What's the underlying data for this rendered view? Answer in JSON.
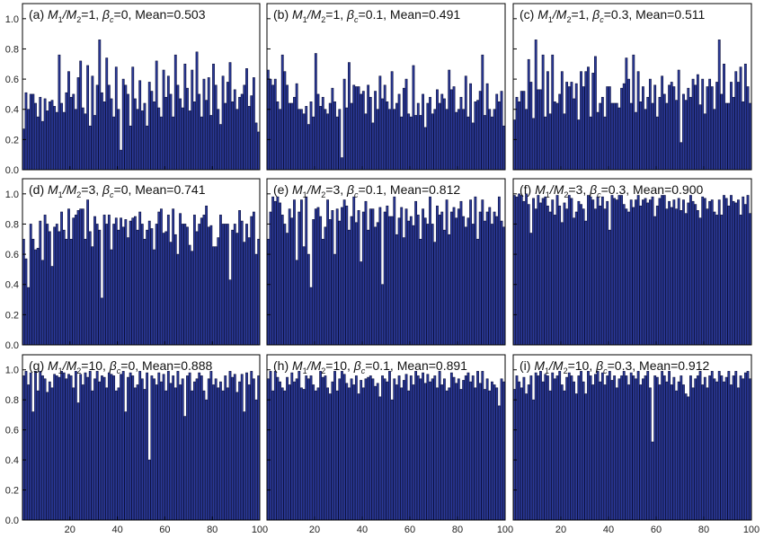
{
  "chart_data": {
    "type": "bar",
    "grid": false,
    "x_ticks": [
      20,
      40,
      60,
      80,
      100
    ],
    "y_ticks": [
      "0.0",
      "0.2",
      "0.4",
      "0.6",
      "0.8",
      "1.0"
    ],
    "ylim": [
      0,
      1.1
    ],
    "xlim": [
      0,
      100
    ],
    "bar_color": "#2b3a9a",
    "panels": [
      {
        "label": "(a)",
        "ratio": "1",
        "beta": "0",
        "mean": "0.503",
        "values": [
          0.27,
          0.51,
          0.4,
          0.5,
          0.5,
          0.44,
          0.35,
          0.48,
          0.32,
          0.47,
          0.39,
          0.45,
          0.46,
          0.42,
          0.38,
          0.76,
          0.44,
          0.38,
          0.51,
          0.65,
          0.48,
          0.5,
          0.4,
          0.61,
          0.72,
          0.41,
          0.37,
          0.69,
          0.29,
          0.62,
          0.36,
          0.56,
          0.86,
          0.51,
          0.45,
          0.74,
          0.56,
          0.47,
          0.35,
          0.68,
          0.4,
          0.13,
          0.6,
          0.56,
          0.5,
          0.29,
          0.68,
          0.47,
          0.4,
          0.59,
          0.39,
          0.44,
          0.29,
          0.58,
          0.52,
          0.45,
          0.72,
          0.41,
          0.35,
          0.66,
          0.48,
          0.62,
          0.5,
          0.35,
          0.76,
          0.56,
          0.47,
          0.41,
          0.7,
          0.54,
          0.39,
          0.66,
          0.45,
          0.78,
          0.5,
          0.35,
          0.6,
          0.46,
          0.61,
          0.36,
          0.7,
          0.56,
          0.4,
          0.3,
          0.62,
          0.44,
          0.58,
          0.71,
          0.45,
          0.53,
          0.4,
          0.48,
          0.5,
          0.56,
          0.67,
          0.42,
          0.49,
          0.61,
          0.31,
          0.25
        ]
      },
      {
        "label": "(b)",
        "ratio": "1",
        "beta": "0.1",
        "mean": "0.491",
        "values": [
          0.66,
          0.6,
          0.56,
          0.6,
          0.45,
          0.4,
          0.76,
          0.65,
          0.56,
          0.44,
          0.44,
          0.48,
          0.57,
          0.4,
          0.4,
          0.37,
          0.42,
          0.3,
          0.45,
          0.35,
          0.77,
          0.5,
          0.42,
          0.48,
          0.4,
          0.37,
          0.44,
          0.54,
          0.45,
          0.35,
          0.4,
          0.08,
          0.6,
          0.41,
          0.71,
          0.44,
          0.56,
          0.55,
          0.55,
          0.5,
          0.52,
          0.37,
          0.56,
          0.48,
          0.31,
          0.52,
          0.4,
          0.62,
          0.47,
          0.56,
          0.45,
          0.4,
          0.65,
          0.4,
          0.44,
          0.5,
          0.35,
          0.54,
          0.6,
          0.37,
          0.35,
          0.69,
          0.36,
          0.44,
          0.36,
          0.5,
          0.28,
          0.44,
          0.48,
          0.37,
          0.4,
          0.53,
          0.44,
          0.5,
          0.47,
          0.4,
          0.66,
          0.53,
          0.55,
          0.38,
          0.4,
          0.48,
          0.4,
          0.62,
          0.35,
          0.57,
          0.31,
          0.45,
          0.46,
          0.52,
          0.76,
          0.36,
          0.57,
          0.4,
          0.35,
          0.4,
          0.5,
          0.45,
          0.52,
          0.29
        ]
      },
      {
        "label": "(c)",
        "ratio": "1",
        "beta": "0.3",
        "mean": "0.511",
        "values": [
          0.33,
          0.48,
          0.45,
          0.52,
          0.52,
          0.4,
          0.73,
          0.58,
          0.34,
          0.86,
          0.53,
          0.53,
          0.76,
          0.35,
          0.65,
          0.37,
          0.76,
          0.45,
          0.44,
          0.5,
          0.65,
          0.37,
          0.58,
          0.55,
          0.58,
          0.47,
          0.57,
          0.33,
          0.65,
          0.55,
          0.65,
          0.68,
          0.35,
          0.64,
          0.75,
          0.38,
          0.44,
          0.48,
          0.35,
          0.55,
          0.55,
          0.44,
          0.44,
          0.44,
          0.41,
          0.54,
          0.57,
          0.74,
          0.6,
          0.44,
          0.76,
          0.38,
          0.65,
          0.45,
          0.55,
          0.4,
          0.48,
          0.6,
          0.44,
          0.56,
          0.35,
          0.48,
          0.62,
          0.5,
          0.44,
          0.56,
          0.58,
          0.55,
          0.46,
          0.66,
          0.18,
          0.5,
          0.46,
          0.54,
          0.48,
          0.6,
          0.56,
          0.63,
          0.43,
          0.6,
          0.37,
          0.55,
          0.6,
          0.55,
          0.4,
          0.58,
          0.86,
          0.5,
          0.7,
          0.44,
          0.44,
          0.58,
          0.48,
          0.65,
          0.58,
          0.68,
          0.45,
          0.7,
          0.55,
          0.44
        ]
      },
      {
        "label": "(d)",
        "ratio": "3",
        "beta": "0",
        "mean": "0.741",
        "values": [
          0.7,
          0.57,
          0.38,
          0.8,
          0.7,
          0.63,
          0.64,
          0.82,
          0.56,
          0.86,
          0.8,
          0.75,
          0.52,
          0.78,
          0.8,
          0.75,
          0.88,
          0.76,
          0.7,
          0.9,
          0.7,
          0.84,
          0.86,
          0.89,
          0.9,
          0.9,
          0.7,
          0.96,
          0.75,
          0.65,
          0.85,
          0.8,
          0.76,
          0.31,
          0.86,
          0.8,
          0.86,
          0.63,
          0.8,
          0.84,
          0.76,
          0.84,
          0.78,
          0.83,
          0.71,
          0.82,
          0.84,
          0.85,
          0.76,
          0.88,
          0.8,
          0.7,
          0.76,
          0.82,
          0.77,
          0.63,
          0.8,
          0.88,
          0.9,
          0.74,
          0.75,
          0.86,
          0.68,
          0.9,
          0.73,
          0.6,
          0.87,
          0.8,
          0.8,
          0.78,
          0.66,
          0.62,
          0.86,
          0.75,
          0.8,
          0.84,
          0.86,
          0.92,
          0.78,
          0.79,
          0.65,
          0.65,
          0.71,
          0.86,
          0.8,
          0.8,
          0.8,
          0.43,
          0.76,
          0.8,
          0.74,
          0.89,
          0.82,
          0.68,
          0.8,
          0.71,
          0.85,
          0.88,
          0.6,
          0.7
        ]
      },
      {
        "label": "(e)",
        "ratio": "3",
        "beta": "0.1",
        "mean": "0.812",
        "values": [
          0.7,
          0.88,
          0.98,
          0.95,
          0.98,
          0.94,
          0.86,
          0.8,
          0.74,
          0.9,
          0.84,
          0.96,
          0.56,
          0.88,
          0.96,
          0.65,
          0.98,
          0.6,
          0.38,
          0.83,
          0.9,
          0.91,
          0.85,
          0.7,
          0.78,
          0.96,
          0.83,
          0.89,
          0.6,
          0.9,
          0.82,
          0.91,
          0.96,
          0.92,
          0.76,
          0.85,
          0.98,
          0.81,
          0.89,
          0.55,
          0.88,
          0.95,
          0.76,
          0.9,
          0.9,
          0.78,
          0.81,
          0.91,
          0.4,
          0.88,
          0.92,
          0.85,
          0.85,
          0.98,
          0.73,
          0.84,
          0.91,
          0.71,
          0.9,
          0.82,
          0.85,
          0.79,
          0.95,
          0.86,
          0.7,
          0.9,
          0.84,
          0.8,
          0.98,
          0.8,
          0.68,
          0.92,
          0.86,
          0.88,
          0.76,
          0.96,
          0.73,
          0.88,
          0.91,
          0.84,
          0.9,
          0.95,
          0.85,
          0.78,
          0.84,
          0.96,
          0.8,
          0.98,
          0.7,
          0.88,
          0.96,
          0.82,
          0.88,
          0.91,
          0.8,
          0.88,
          0.85,
          0.98,
          0.82,
          0.78
        ]
      },
      {
        "label": "(f)",
        "ratio": "3",
        "beta": "0.3",
        "mean": "0.900",
        "values": [
          0.99,
          0.98,
          1.0,
          0.99,
          0.95,
          1.0,
          0.93,
          0.74,
          0.97,
          0.9,
          0.99,
          0.94,
          0.97,
          0.98,
          0.92,
          0.88,
          0.96,
          0.86,
          0.99,
          0.92,
          0.81,
          0.94,
          0.9,
          0.99,
          0.97,
          0.84,
          0.88,
          0.95,
          0.93,
          0.9,
          0.82,
          0.99,
          0.98,
          0.96,
          0.9,
          0.98,
          0.92,
          0.98,
          0.9,
          0.95,
          0.76,
          0.99,
          0.97,
          0.96,
          0.99,
          0.99,
          0.93,
          0.9,
          0.88,
          0.96,
          0.91,
          0.96,
          0.99,
          0.92,
          0.96,
          0.97,
          0.94,
          0.96,
          0.98,
          0.85,
          0.92,
          0.97,
          0.99,
          0.99,
          0.9,
          0.95,
          0.91,
          0.96,
          0.9,
          0.97,
          0.89,
          0.96,
          0.87,
          0.94,
          0.99,
          0.95,
          0.93,
          0.89,
          0.84,
          0.98,
          0.97,
          0.9,
          0.95,
          0.96,
          0.88,
          0.86,
          0.96,
          0.86,
          0.99,
          0.97,
          0.92,
          0.99,
          0.95,
          0.94,
          0.96,
          0.86,
          0.98,
          0.93,
          0.99,
          0.87
        ]
      },
      {
        "label": "(g)",
        "ratio": "10",
        "beta": "0",
        "mean": "0.888",
        "values": [
          0.96,
          0.99,
          0.9,
          0.98,
          0.72,
          0.99,
          0.86,
          0.99,
          0.96,
          0.94,
          0.85,
          0.92,
          0.88,
          0.97,
          0.96,
          0.95,
          0.99,
          0.98,
          0.94,
          0.97,
          0.96,
          0.88,
          0.99,
          0.78,
          0.97,
          0.9,
          0.98,
          0.95,
          0.99,
          0.86,
          0.94,
          0.99,
          0.92,
          0.96,
          0.95,
          0.88,
          0.98,
          0.97,
          0.96,
          0.86,
          0.88,
          0.97,
          0.99,
          0.72,
          0.95,
          0.98,
          0.96,
          0.88,
          0.9,
          0.99,
          0.94,
          0.87,
          0.98,
          0.4,
          0.96,
          0.94,
          0.9,
          0.98,
          0.92,
          0.97,
          0.86,
          0.99,
          0.91,
          0.96,
          0.88,
          0.99,
          0.9,
          0.94,
          0.69,
          0.96,
          0.98,
          0.86,
          0.92,
          0.94,
          0.98,
          0.96,
          0.86,
          0.8,
          0.94,
          0.99,
          0.9,
          0.94,
          0.88,
          0.92,
          0.86,
          0.96,
          0.88,
          0.99,
          0.95,
          0.97,
          0.85,
          0.92,
          0.97,
          0.72,
          0.98,
          0.9,
          0.99,
          0.94,
          0.8,
          0.96
        ]
      },
      {
        "label": "(h)",
        "ratio": "10",
        "beta": "0.1",
        "mean": "0.891",
        "values": [
          0.94,
          0.99,
          0.86,
          0.99,
          0.95,
          0.92,
          0.88,
          0.86,
          0.95,
          0.9,
          0.98,
          0.92,
          0.94,
          0.99,
          0.88,
          0.87,
          0.96,
          0.94,
          0.96,
          0.9,
          0.86,
          0.88,
          0.99,
          0.95,
          0.96,
          0.88,
          0.84,
          0.92,
          0.99,
          0.86,
          0.94,
          0.99,
          0.97,
          0.91,
          0.88,
          0.94,
          0.9,
          0.96,
          0.84,
          0.93,
          0.88,
          0.94,
          0.95,
          0.96,
          0.94,
          0.89,
          0.91,
          0.82,
          0.96,
          0.94,
          0.92,
          0.99,
          0.8,
          0.94,
          0.9,
          0.96,
          0.88,
          0.93,
          0.97,
          0.86,
          0.96,
          0.9,
          0.99,
          0.96,
          0.94,
          0.98,
          0.91,
          0.97,
          0.92,
          0.94,
          0.96,
          0.88,
          0.99,
          0.9,
          0.94,
          0.86,
          0.88,
          0.98,
          0.95,
          0.91,
          0.94,
          0.87,
          0.93,
          0.96,
          0.98,
          0.92,
          0.96,
          0.88,
          0.99,
          0.91,
          0.99,
          0.87,
          0.94,
          0.86,
          0.92,
          0.9,
          0.88,
          0.76,
          0.94,
          0.92
        ]
      },
      {
        "label": "(i)",
        "ratio": "10",
        "beta": "0.3",
        "mean": "0.912",
        "values": [
          0.87,
          0.96,
          0.92,
          0.88,
          0.95,
          0.84,
          0.9,
          0.96,
          0.8,
          0.98,
          0.96,
          0.99,
          0.92,
          0.97,
          0.96,
          0.86,
          0.98,
          0.94,
          0.96,
          0.99,
          0.9,
          0.86,
          0.95,
          0.98,
          0.96,
          0.92,
          0.84,
          0.96,
          0.99,
          0.92,
          0.84,
          0.99,
          0.96,
          0.9,
          0.97,
          0.99,
          0.92,
          0.98,
          0.9,
          0.96,
          0.99,
          0.93,
          0.96,
          0.88,
          0.94,
          0.96,
          0.99,
          0.96,
          0.9,
          0.98,
          0.96,
          0.94,
          0.99,
          0.9,
          0.94,
          0.96,
          0.99,
          0.88,
          0.52,
          0.96,
          0.95,
          0.9,
          0.99,
          0.96,
          0.92,
          0.99,
          0.9,
          0.95,
          0.86,
          0.92,
          0.96,
          0.9,
          0.84,
          0.82,
          0.96,
          0.88,
          0.94,
          0.96,
          0.99,
          0.9,
          0.95,
          0.88,
          0.96,
          0.99,
          0.94,
          0.92,
          0.99,
          0.96,
          0.92,
          0.95,
          0.99,
          0.9,
          0.96,
          0.99,
          0.88,
          0.96,
          0.94,
          0.98,
          0.99,
          0.94
        ]
      }
    ]
  }
}
